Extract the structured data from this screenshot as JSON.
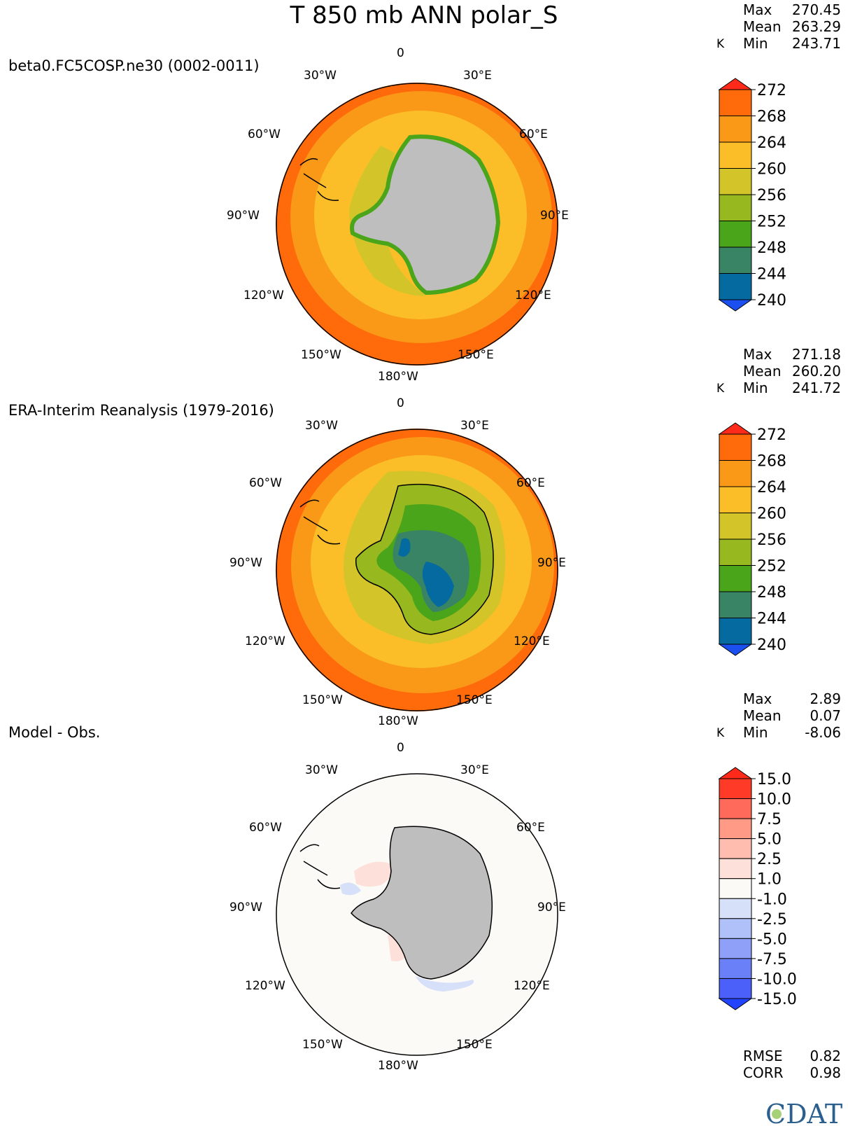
{
  "title": "T 850 mb ANN polar_S",
  "units": "K",
  "lon_labels": {
    "top": "0",
    "ul": "30°W",
    "ur": "30°E",
    "l60": "60°W",
    "r60": "60°E",
    "l90": "90°W",
    "r90": "90°E",
    "l120": "120°W",
    "r120": "120°E",
    "l150": "150°W",
    "r150": "150°E",
    "bottom": "180°W"
  },
  "stat_labels": {
    "max": "Max",
    "mean": "Mean",
    "min": "Min",
    "rmse": "RMSE",
    "corr": "CORR"
  },
  "panels": [
    {
      "name": "beta0.FC5COSP.ne30 (0002-0011)",
      "stats": {
        "max": "270.45",
        "mean": "263.29",
        "min": "243.71"
      },
      "colorbar": [
        "272",
        "268",
        "264",
        "260",
        "256",
        "252",
        "248",
        "244",
        "240"
      ]
    },
    {
      "name": "ERA-Interim Reanalysis (1979-2016)",
      "stats": {
        "max": "271.18",
        "mean": "260.20",
        "min": "241.72"
      },
      "colorbar": [
        "272",
        "268",
        "264",
        "260",
        "256",
        "252",
        "248",
        "244",
        "240"
      ]
    },
    {
      "name": "Model - Obs.",
      "stats": {
        "max": "2.89",
        "mean": "0.07",
        "min": "-8.06"
      },
      "colorbar": [
        "15.0",
        "10.0",
        "7.5",
        "5.0",
        "2.5",
        "1.0",
        "-1.0",
        "-2.5",
        "-5.0",
        "-7.5",
        "-10.0",
        "-15.0"
      ],
      "rmse": "0.82",
      "corr": "0.98"
    }
  ],
  "colors": {
    "abs_scale": [
      "#ff6a0a",
      "#fa9818",
      "#fbbe28",
      "#d3c529",
      "#97b81e",
      "#4aa51a",
      "#3a8466",
      "#056aa0"
    ],
    "abs_over": "#ff2a1a",
    "abs_under": "#1b4ff0",
    "diff_scale": [
      "#ff3b28",
      "#ff6a5a",
      "#ff9a86",
      "#ffbdb0",
      "#fde0da",
      "#fcfaf6",
      "#d6e0f8",
      "#b0c0f8",
      "#8ea0f8",
      "#6a80f8",
      "#4a60f8"
    ],
    "diff_over": "#ff2a1a",
    "diff_under": "#2244ff",
    "land_mask": "#bebebe"
  },
  "logo": {
    "text": "CDAT"
  }
}
